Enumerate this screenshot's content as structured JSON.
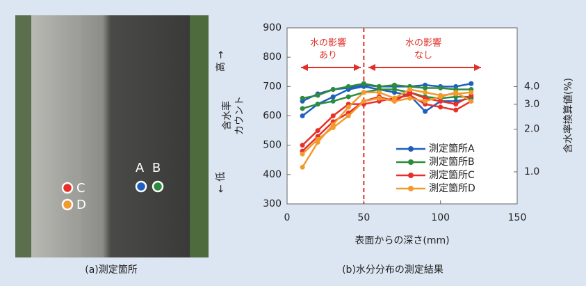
{
  "panel_a": {
    "caption": "(a)測定箇所",
    "points": [
      {
        "label": "A",
        "color": "#1f5fbf"
      },
      {
        "label": "B",
        "color": "#2e8b3e"
      },
      {
        "label": "C",
        "color": "#e8302a"
      },
      {
        "label": "D",
        "color": "#f29a2e"
      }
    ]
  },
  "chart_data": {
    "type": "line",
    "caption": "(b)水分分布の測定結果",
    "x_label": "表面からの深さ(mm)",
    "y_label": [
      "含水率",
      "カウント"
    ],
    "y_high": "高 →",
    "y_low": "← 低",
    "y2_label": "含水率換算値(%)",
    "annotations": [
      {
        "lines": [
          "水の影響",
          "あり"
        ]
      },
      {
        "lines": [
          "水の影響",
          "なし"
        ]
      }
    ],
    "boundary_x": 50,
    "x": [
      10,
      20,
      30,
      40,
      50,
      60,
      70,
      80,
      90,
      100,
      110,
      120
    ],
    "xlim": [
      0,
      150
    ],
    "xticks": [
      0,
      50,
      100,
      150
    ],
    "ylim": [
      300,
      900
    ],
    "yticks": [
      300,
      400,
      500,
      600,
      700,
      800,
      900
    ],
    "y2log": true,
    "y2lim": [
      0.594,
      10.4
    ],
    "y2ticks": [
      {
        "value": 1,
        "label": "1.0"
      },
      {
        "value": 2,
        "label": "2.0"
      },
      {
        "value": 3,
        "label": "3.0"
      },
      {
        "value": 4,
        "label": "4.0"
      }
    ],
    "series": [
      {
        "name": "測定箇所A",
        "color": "#1f5fbf",
        "lines": [
          [
            650,
            675,
            690,
            695,
            705,
            700,
            700,
            700,
            705,
            700,
            700,
            710
          ],
          [
            600,
            640,
            665,
            690,
            700,
            690,
            680,
            670,
            615,
            650,
            650,
            660
          ]
        ]
      },
      {
        "name": "測定箇所B",
        "color": "#2e8b3e",
        "lines": [
          [
            660,
            670,
            690,
            700,
            710,
            700,
            705,
            700,
            695,
            695,
            690,
            690
          ],
          [
            625,
            640,
            650,
            665,
            680,
            690,
            690,
            680,
            665,
            660,
            665,
            665
          ]
        ]
      },
      {
        "name": "測定箇所C",
        "color": "#e8302a",
        "lines": [
          [
            500,
            550,
            600,
            640,
            640,
            650,
            660,
            670,
            640,
            630,
            620,
            650
          ],
          [
            480,
            530,
            580,
            610,
            650,
            665,
            650,
            680,
            660,
            650,
            640,
            670
          ]
        ]
      },
      {
        "name": "測定箇所D",
        "color": "#f29a2e",
        "lines": [
          [
            425,
            510,
            570,
            630,
            680,
            680,
            660,
            690,
            680,
            670,
            675,
            680
          ],
          [
            470,
            520,
            560,
            600,
            650,
            660,
            650,
            660,
            650,
            665,
            680,
            650
          ]
        ]
      }
    ]
  }
}
